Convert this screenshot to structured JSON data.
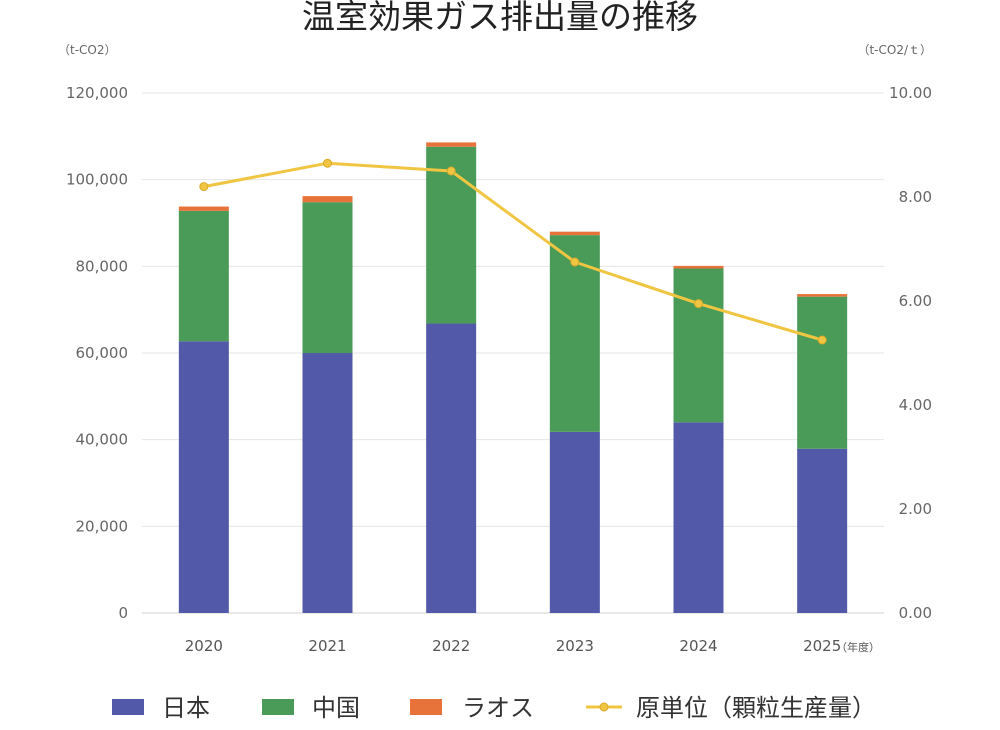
{
  "chart_data": {
    "type": "bar",
    "title": "温室効果ガス排出量の推移",
    "left_unit": "（t-CO2）",
    "right_unit": "（t-CO2/ｔ）",
    "x_suffix": "（年度）",
    "categories": [
      "2020",
      "2021",
      "2022",
      "2023",
      "2024",
      "2025"
    ],
    "stacked": true,
    "series": [
      {
        "name": "日本",
        "type": "bar",
        "axis": "left",
        "color": "#5159a8",
        "values": [
          62700,
          60000,
          66800,
          41800,
          44000,
          37900
        ]
      },
      {
        "name": "中国",
        "type": "bar",
        "axis": "left",
        "color": "#4a9b58",
        "values": [
          30100,
          34800,
          40800,
          45400,
          35500,
          35100
        ]
      },
      {
        "name": "ラオス",
        "type": "bar",
        "axis": "left",
        "color": "#e8733a",
        "values": [
          1000,
          1400,
          1000,
          800,
          600,
          600
        ]
      },
      {
        "name": "原単位（顆粒生産量）",
        "type": "line",
        "axis": "right",
        "color": "#f0c542",
        "values": [
          8.2,
          8.65,
          8.5,
          6.75,
          5.95,
          5.25
        ]
      }
    ],
    "y_left": {
      "min": 0,
      "max": 120000,
      "ticks": [
        "0",
        "20,000",
        "40,000",
        "60,000",
        "80,000",
        "100,000",
        "120,000"
      ]
    },
    "y_right": {
      "min": 0,
      "max": 10,
      "ticks": [
        "0.00",
        "2.00",
        "4.00",
        "6.00",
        "8.00",
        "10.00"
      ]
    },
    "grid": true,
    "legend_position": "bottom"
  }
}
